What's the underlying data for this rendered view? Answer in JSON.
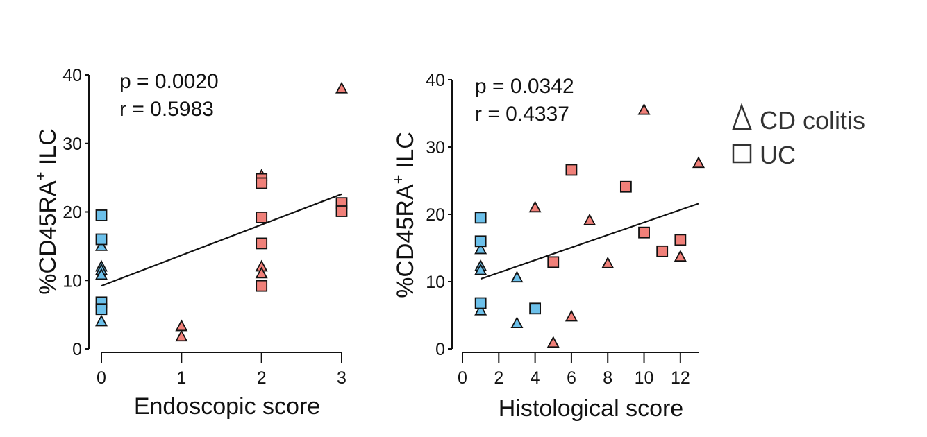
{
  "colors": {
    "cd_marker": "#f08079",
    "uc_marker": "#6cc0ea",
    "stroke": "#111111"
  },
  "legend": [
    {
      "label": "CD colitis",
      "marker": "triangle"
    },
    {
      "label": "UC",
      "marker": "square"
    }
  ],
  "chart_data": [
    {
      "type": "scatter",
      "ylabel_main": "%CD45RA",
      "ylabel_sup": "+",
      "ylabel_tail": " ILC",
      "xlabel": "Endoscopic score",
      "xlim": [
        0,
        3
      ],
      "ylim": [
        0,
        40
      ],
      "xticks": [
        0,
        1,
        2,
        3
      ],
      "yticks": [
        0,
        10,
        20,
        30,
        40
      ],
      "stats": {
        "p": "p = 0.0020",
        "r": "r = 0.5983"
      },
      "regression": {
        "x1": 0,
        "y1": 9.2,
        "x2": 3,
        "y2": 22.6
      },
      "series": [
        {
          "name": "CD colitis",
          "marker": "triangle",
          "points": [
            {
              "x": 0,
              "y": 15,
              "group": "low"
            },
            {
              "x": 0,
              "y": 12,
              "group": "low"
            },
            {
              "x": 0,
              "y": 11.5,
              "group": "low"
            },
            {
              "x": 0,
              "y": 10.8,
              "group": "low"
            },
            {
              "x": 0,
              "y": 4,
              "group": "low"
            },
            {
              "x": 1,
              "y": 3.3,
              "group": "high"
            },
            {
              "x": 1,
              "y": 1.8,
              "group": "high"
            },
            {
              "x": 2,
              "y": 25.3,
              "group": "high"
            },
            {
              "x": 2,
              "y": 12,
              "group": "high"
            },
            {
              "x": 2,
              "y": 11,
              "group": "high"
            },
            {
              "x": 3,
              "y": 38,
              "group": "high"
            }
          ]
        },
        {
          "name": "UC",
          "marker": "square",
          "points": [
            {
              "x": 0,
              "y": 19.5,
              "group": "low"
            },
            {
              "x": 0,
              "y": 16,
              "group": "low"
            },
            {
              "x": 0,
              "y": 6.8,
              "group": "low"
            },
            {
              "x": 0,
              "y": 5.8,
              "group": "low"
            },
            {
              "x": 2,
              "y": 24.8,
              "group": "high"
            },
            {
              "x": 2,
              "y": 24.2,
              "group": "high"
            },
            {
              "x": 2,
              "y": 19.2,
              "group": "high"
            },
            {
              "x": 2,
              "y": 15.4,
              "group": "high"
            },
            {
              "x": 2,
              "y": 9.2,
              "group": "high"
            },
            {
              "x": 3,
              "y": 21.3,
              "group": "high"
            },
            {
              "x": 3,
              "y": 20.1,
              "group": "high"
            }
          ]
        }
      ]
    },
    {
      "type": "scatter",
      "ylabel_main": "%CD45RA",
      "ylabel_sup": "+",
      "ylabel_tail": " ILC",
      "xlabel": "Histological score",
      "xlim": [
        0,
        13
      ],
      "ylim": [
        0,
        40
      ],
      "xticks": [
        0,
        2,
        4,
        6,
        8,
        10,
        12
      ],
      "yticks": [
        0,
        10,
        20,
        30,
        40
      ],
      "stats": {
        "p": "p = 0.0342",
        "r": "r = 0.4337"
      },
      "regression": {
        "x1": 1,
        "y1": 10.4,
        "x2": 13,
        "y2": 21.6
      },
      "series": [
        {
          "name": "CD colitis",
          "marker": "triangle",
          "points": [
            {
              "x": 1,
              "y": 14.8,
              "group": "low"
            },
            {
              "x": 1,
              "y": 12.3,
              "group": "low"
            },
            {
              "x": 1,
              "y": 11.7,
              "group": "low"
            },
            {
              "x": 1,
              "y": 5.7,
              "group": "low"
            },
            {
              "x": 3,
              "y": 10.6,
              "group": "low"
            },
            {
              "x": 3,
              "y": 3.8,
              "group": "low"
            },
            {
              "x": 4,
              "y": 21,
              "group": "high"
            },
            {
              "x": 5,
              "y": 0.9,
              "group": "high"
            },
            {
              "x": 6,
              "y": 4.8,
              "group": "high"
            },
            {
              "x": 7,
              "y": 19.1,
              "group": "high"
            },
            {
              "x": 8,
              "y": 12.7,
              "group": "high"
            },
            {
              "x": 10,
              "y": 35.5,
              "group": "high"
            },
            {
              "x": 12,
              "y": 13.7,
              "group": "high"
            },
            {
              "x": 13,
              "y": 27.6,
              "group": "high"
            }
          ]
        },
        {
          "name": "UC",
          "marker": "square",
          "points": [
            {
              "x": 1,
              "y": 19.5,
              "group": "low"
            },
            {
              "x": 1,
              "y": 16,
              "group": "low"
            },
            {
              "x": 1,
              "y": 6.8,
              "group": "low"
            },
            {
              "x": 4,
              "y": 6,
              "group": "low"
            },
            {
              "x": 5,
              "y": 12.9,
              "group": "high"
            },
            {
              "x": 6,
              "y": 26.6,
              "group": "high"
            },
            {
              "x": 9,
              "y": 24.1,
              "group": "high"
            },
            {
              "x": 10,
              "y": 17.3,
              "group": "high"
            },
            {
              "x": 11,
              "y": 14.5,
              "group": "high"
            },
            {
              "x": 12,
              "y": 16.2,
              "group": "high"
            }
          ]
        }
      ]
    }
  ]
}
